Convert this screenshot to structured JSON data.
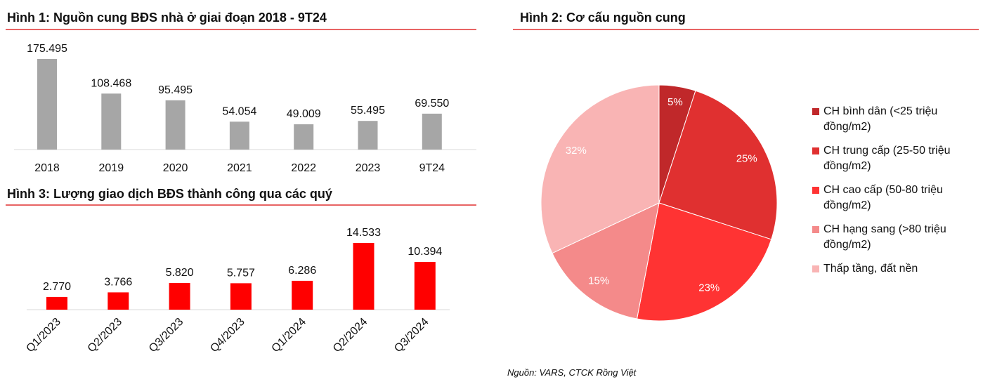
{
  "chart_data": [
    {
      "type": "bar",
      "title": "Hình 1: Nguồn cung BĐS nhà ở giai đoạn 2018 - 9T24",
      "categories": [
        "2018",
        "2019",
        "2020",
        "2021",
        "2022",
        "2023",
        "9T24"
      ],
      "values": [
        175495,
        108468,
        95495,
        54054,
        49009,
        55495,
        69550
      ],
      "value_labels": [
        "175.495",
        "108.468",
        "95.495",
        "54.054",
        "49.009",
        "55.495",
        "69.550"
      ],
      "color": "#a6a6a6"
    },
    {
      "type": "pie",
      "title": "Hình 2: Cơ cấu nguồn cung",
      "categories": [
        "CH bình dân (<25 triệu đồng/m2)",
        "CH trung cấp (25-50 triệu đồng/m2)",
        "CH cao cấp (50-80 triệu đồng/m2)",
        "CH hạng sang (>80 triệu đồng/m2)",
        "Thấp tầng, đất nền"
      ],
      "values": [
        5,
        25,
        23,
        15,
        32
      ],
      "value_labels": [
        "5%",
        "25%",
        "23%",
        "15%",
        "32%"
      ],
      "colors": [
        "#c0282a",
        "#e03030",
        "#ff3333",
        "#f48a8a",
        "#f9b4b4"
      ],
      "source": "Nguồn: VARS, CTCK Rồng Việt"
    },
    {
      "type": "bar",
      "title": "Hình 3: Lượng giao dịch BĐS thành công qua các quý",
      "categories": [
        "Q1/2023",
        "Q2/2023",
        "Q3/2023",
        "Q4/2023",
        "Q1/2024",
        "Q2/2024",
        "Q3/2024"
      ],
      "values": [
        2770,
        3766,
        5820,
        5757,
        6286,
        14533,
        10394
      ],
      "value_labels": [
        "2.770",
        "3.766",
        "5.820",
        "5.757",
        "6.286",
        "14.533",
        "10.394"
      ],
      "color": "#ff0000",
      "rotated_labels": true
    }
  ]
}
